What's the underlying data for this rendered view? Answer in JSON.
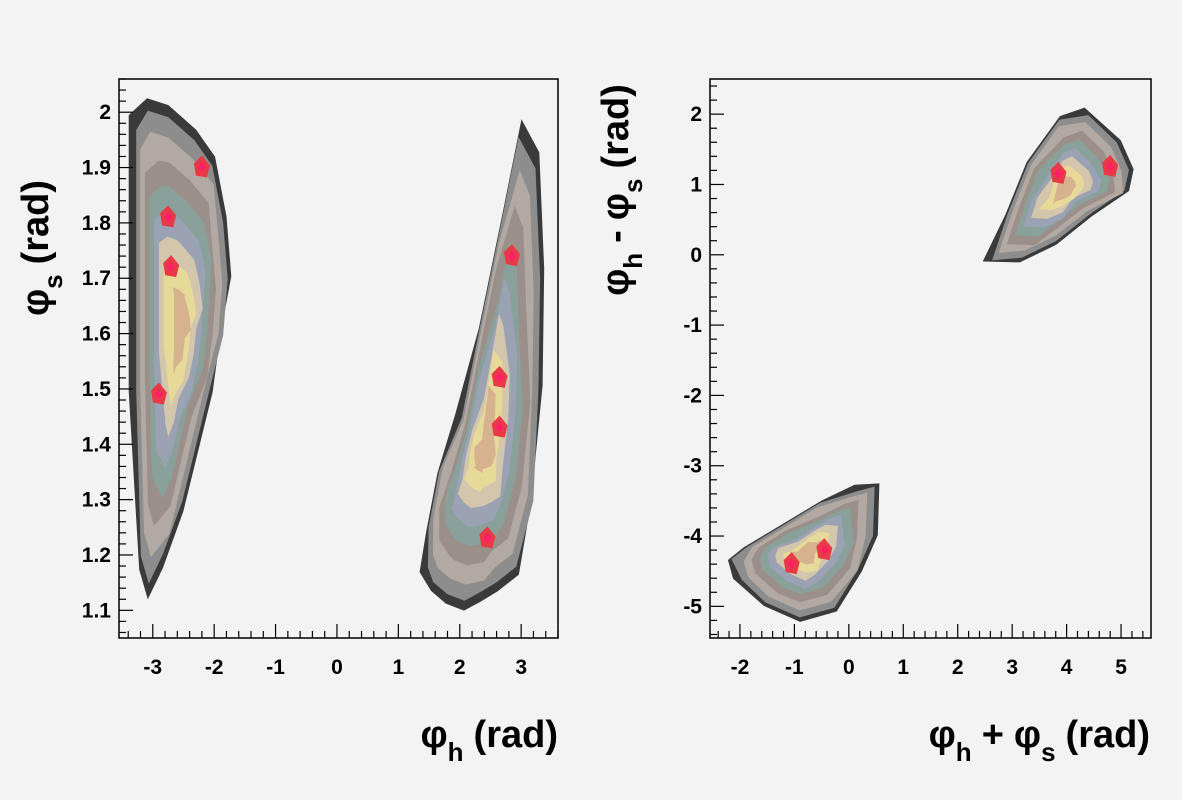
{
  "palette": [
    "#3a3a3a",
    "#8d8d8d",
    "#b2a9a2",
    "#d3c6ad",
    "#9b8f8a",
    "#8aa09a",
    "#9aa2b4",
    "#e7d998",
    "#d6b28f",
    "#e83a46",
    "#ff1f66"
  ],
  "chart_data": [
    {
      "type": "heatmap",
      "title": "",
      "xlabel": {
        "sym": "φ",
        "sub": "h",
        "unit": "(rad)"
      },
      "ylabel": {
        "sym": "φ",
        "sub": "s",
        "unit": "(rad)"
      },
      "xlim": [
        -3.55,
        3.6
      ],
      "ylim": [
        1.05,
        2.06
      ],
      "xticks": [
        -3,
        -2,
        -1,
        0,
        1,
        2,
        3
      ],
      "xtick_labels": [
        "-3",
        "-2",
        "-1",
        "0",
        "1",
        "2",
        "3"
      ],
      "yticks": [
        1.1,
        1.2,
        1.3,
        1.4,
        1.5,
        1.6,
        1.7,
        1.8,
        1.9,
        2.0
      ],
      "ytick_labels": [
        "1.1",
        "1.2",
        "1.3",
        "1.4",
        "1.5",
        "1.6",
        "1.7",
        "1.8",
        "1.9",
        "2"
      ],
      "grid": false,
      "clusters": [
        {
          "name": "left-band",
          "x": [
            -3.3,
            -3.05,
            -2.75,
            -2.35,
            -2.0,
            -1.85,
            -1.8,
            -1.9,
            -2.05,
            -2.3,
            -2.55,
            -2.8,
            -3.05,
            -3.2,
            -3.3
          ],
          "y": [
            1.97,
            2.0,
            1.99,
            1.95,
            1.9,
            1.8,
            1.7,
            1.6,
            1.5,
            1.4,
            1.3,
            1.2,
            1.15,
            1.2,
            1.5
          ]
        },
        {
          "name": "right-band",
          "x": [
            1.45,
            1.6,
            1.8,
            2.05,
            2.35,
            2.6,
            2.9,
            3.15,
            3.3,
            3.3,
            3.2,
            3.0,
            2.7,
            2.3,
            2.0,
            1.7,
            1.5
          ],
          "y": [
            1.18,
            1.15,
            1.13,
            1.12,
            1.13,
            1.15,
            1.18,
            1.3,
            1.5,
            1.7,
            1.9,
            1.95,
            1.8,
            1.6,
            1.45,
            1.35,
            1.25
          ]
        }
      ],
      "hotspots": [
        {
          "x": -2.2,
          "y": 1.9
        },
        {
          "x": -2.75,
          "y": 1.81
        },
        {
          "x": -2.7,
          "y": 1.72
        },
        {
          "x": -2.9,
          "y": 1.49
        },
        {
          "x": 2.65,
          "y": 1.43
        },
        {
          "x": 2.45,
          "y": 1.23
        },
        {
          "x": 2.85,
          "y": 1.74
        },
        {
          "x": 2.65,
          "y": 1.52
        }
      ]
    },
    {
      "type": "heatmap",
      "title": "",
      "xlabel": {
        "sym": "φ",
        "sub": "h",
        "op": "+",
        "sym2": "φ",
        "sub2": "s",
        "unit": "(rad)"
      },
      "ylabel": {
        "sym": "φ",
        "sub": "h",
        "op": "-",
        "sym2": "φ",
        "sub2": "s",
        "unit": "(rad)"
      },
      "xlim": [
        -2.55,
        5.55
      ],
      "ylim": [
        -5.45,
        2.5
      ],
      "xticks": [
        -2,
        -1,
        0,
        1,
        2,
        3,
        4,
        5
      ],
      "xtick_labels": [
        "-2",
        "-1",
        "0",
        "1",
        "2",
        "3",
        "4",
        "5"
      ],
      "yticks": [
        -5,
        -4,
        -3,
        -2,
        -1,
        0,
        1,
        2
      ],
      "ytick_labels": [
        "-5",
        "-4",
        "-3",
        "-2",
        "-1",
        "0",
        "1",
        "2"
      ],
      "grid": false,
      "clusters": [
        {
          "name": "lower-left-blob",
          "x": [
            -2.0,
            -1.5,
            -0.9,
            -0.3,
            0.2,
            0.45,
            0.45,
            0.1,
            -0.5,
            -1.2,
            -1.9,
            -2.1
          ],
          "y": [
            -4.6,
            -4.95,
            -5.15,
            -5.0,
            -4.5,
            -4.0,
            -3.3,
            -3.35,
            -3.55,
            -3.85,
            -4.15,
            -4.35
          ]
        },
        {
          "name": "upper-right-blob",
          "x": [
            2.6,
            3.2,
            3.8,
            4.4,
            5.1,
            5.15,
            4.9,
            4.35,
            3.9,
            3.3,
            2.9
          ],
          "y": [
            -0.05,
            -0.05,
            0.2,
            0.6,
            0.9,
            1.2,
            1.6,
            2.0,
            1.9,
            1.3,
            0.6
          ]
        }
      ],
      "hotspots": [
        {
          "x": -1.05,
          "y": -4.4
        },
        {
          "x": -0.45,
          "y": -4.2
        },
        {
          "x": 3.85,
          "y": 1.15
        },
        {
          "x": 4.8,
          "y": 1.25
        }
      ]
    }
  ]
}
